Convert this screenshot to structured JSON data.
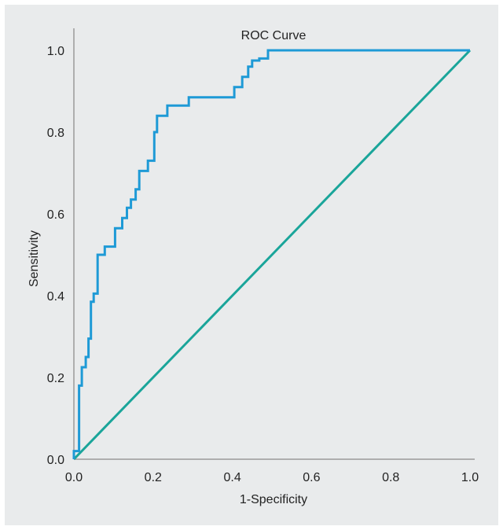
{
  "chart_data": {
    "type": "line",
    "title": "ROC Curve",
    "xlabel": "1-Specificity",
    "ylabel": "Sensitivity",
    "xlim": [
      0,
      1
    ],
    "ylim": [
      0,
      1
    ],
    "xticks": [
      "0.0",
      "0.2",
      "0.4",
      "0.6",
      "0.8",
      "1.0"
    ],
    "yticks": [
      "0.0",
      "0.2",
      "0.4",
      "0.6",
      "0.8",
      "1.0"
    ],
    "grid": false,
    "legend": "none",
    "series": [
      {
        "color": "#1e9ad6",
        "x": [
          0.0,
          0.0,
          0.013,
          0.013,
          0.02,
          0.02,
          0.03,
          0.03,
          0.037,
          0.037,
          0.043,
          0.043,
          0.05,
          0.05,
          0.06,
          0.06,
          0.078,
          0.078,
          0.104,
          0.104,
          0.122,
          0.122,
          0.134,
          0.134,
          0.144,
          0.144,
          0.156,
          0.156,
          0.165,
          0.165,
          0.187,
          0.187,
          0.203,
          0.203,
          0.21,
          0.21,
          0.236,
          0.236,
          0.29,
          0.29,
          0.405,
          0.405,
          0.425,
          0.425,
          0.44,
          0.44,
          0.45,
          0.45,
          0.468,
          0.468,
          0.49,
          0.49,
          0.526,
          0.526,
          1.0
        ],
        "y": [
          0.0,
          0.02,
          0.02,
          0.18,
          0.18,
          0.225,
          0.225,
          0.25,
          0.25,
          0.295,
          0.295,
          0.385,
          0.385,
          0.405,
          0.405,
          0.5,
          0.5,
          0.52,
          0.52,
          0.565,
          0.565,
          0.59,
          0.59,
          0.615,
          0.615,
          0.635,
          0.635,
          0.66,
          0.66,
          0.705,
          0.705,
          0.73,
          0.73,
          0.8,
          0.8,
          0.84,
          0.84,
          0.865,
          0.865,
          0.885,
          0.885,
          0.91,
          0.91,
          0.935,
          0.935,
          0.96,
          0.96,
          0.975,
          0.975,
          0.98,
          0.98,
          1.0,
          1.0,
          1.0,
          1.0
        ]
      },
      {
        "color": "#1aa59a",
        "x": [
          0.0,
          1.0
        ],
        "y": [
          0.0,
          1.0
        ]
      }
    ]
  }
}
